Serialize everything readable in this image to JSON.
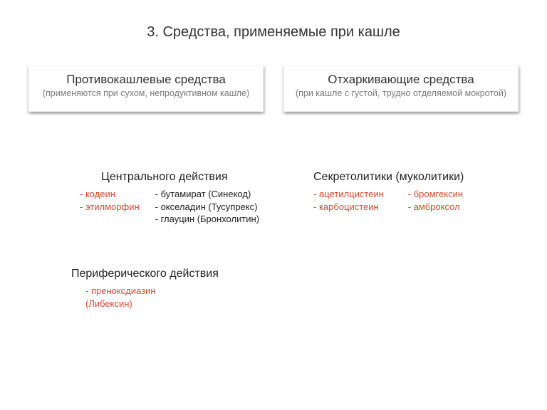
{
  "title": "3. Средства, применяемые при кашле",
  "cards": {
    "left": {
      "title": "Противокашлевые средства",
      "sub": "(применяются при сухом, непродуктивном кашле)"
    },
    "right": {
      "title": "Отхаркивающие средства",
      "sub": "(при кашле с густой, трудно отделяемой мокротой)"
    }
  },
  "central": {
    "heading": "Центрального действия",
    "col1": [
      "- кодеин",
      "- этилморфин"
    ],
    "col2": [
      "- бутамират (Синекод)",
      "- окселадин (Тусупрекс)",
      "- глауцин (Бронхолитин)"
    ]
  },
  "peripheral": {
    "heading": "Периферического действия",
    "items": [
      "- преноксдиазин",
      "  (Либексин)"
    ]
  },
  "secreto": {
    "heading": "Секретолитики (муколитики)",
    "col1": [
      "- ацетилцистеин",
      "- карбоцистеин"
    ],
    "col2": [
      "- бромгексин",
      "- амброксол"
    ]
  },
  "colors": {
    "accent": "#d14a2e",
    "text": "#333333",
    "muted": "#7a7a7a",
    "background": "#ffffff"
  }
}
